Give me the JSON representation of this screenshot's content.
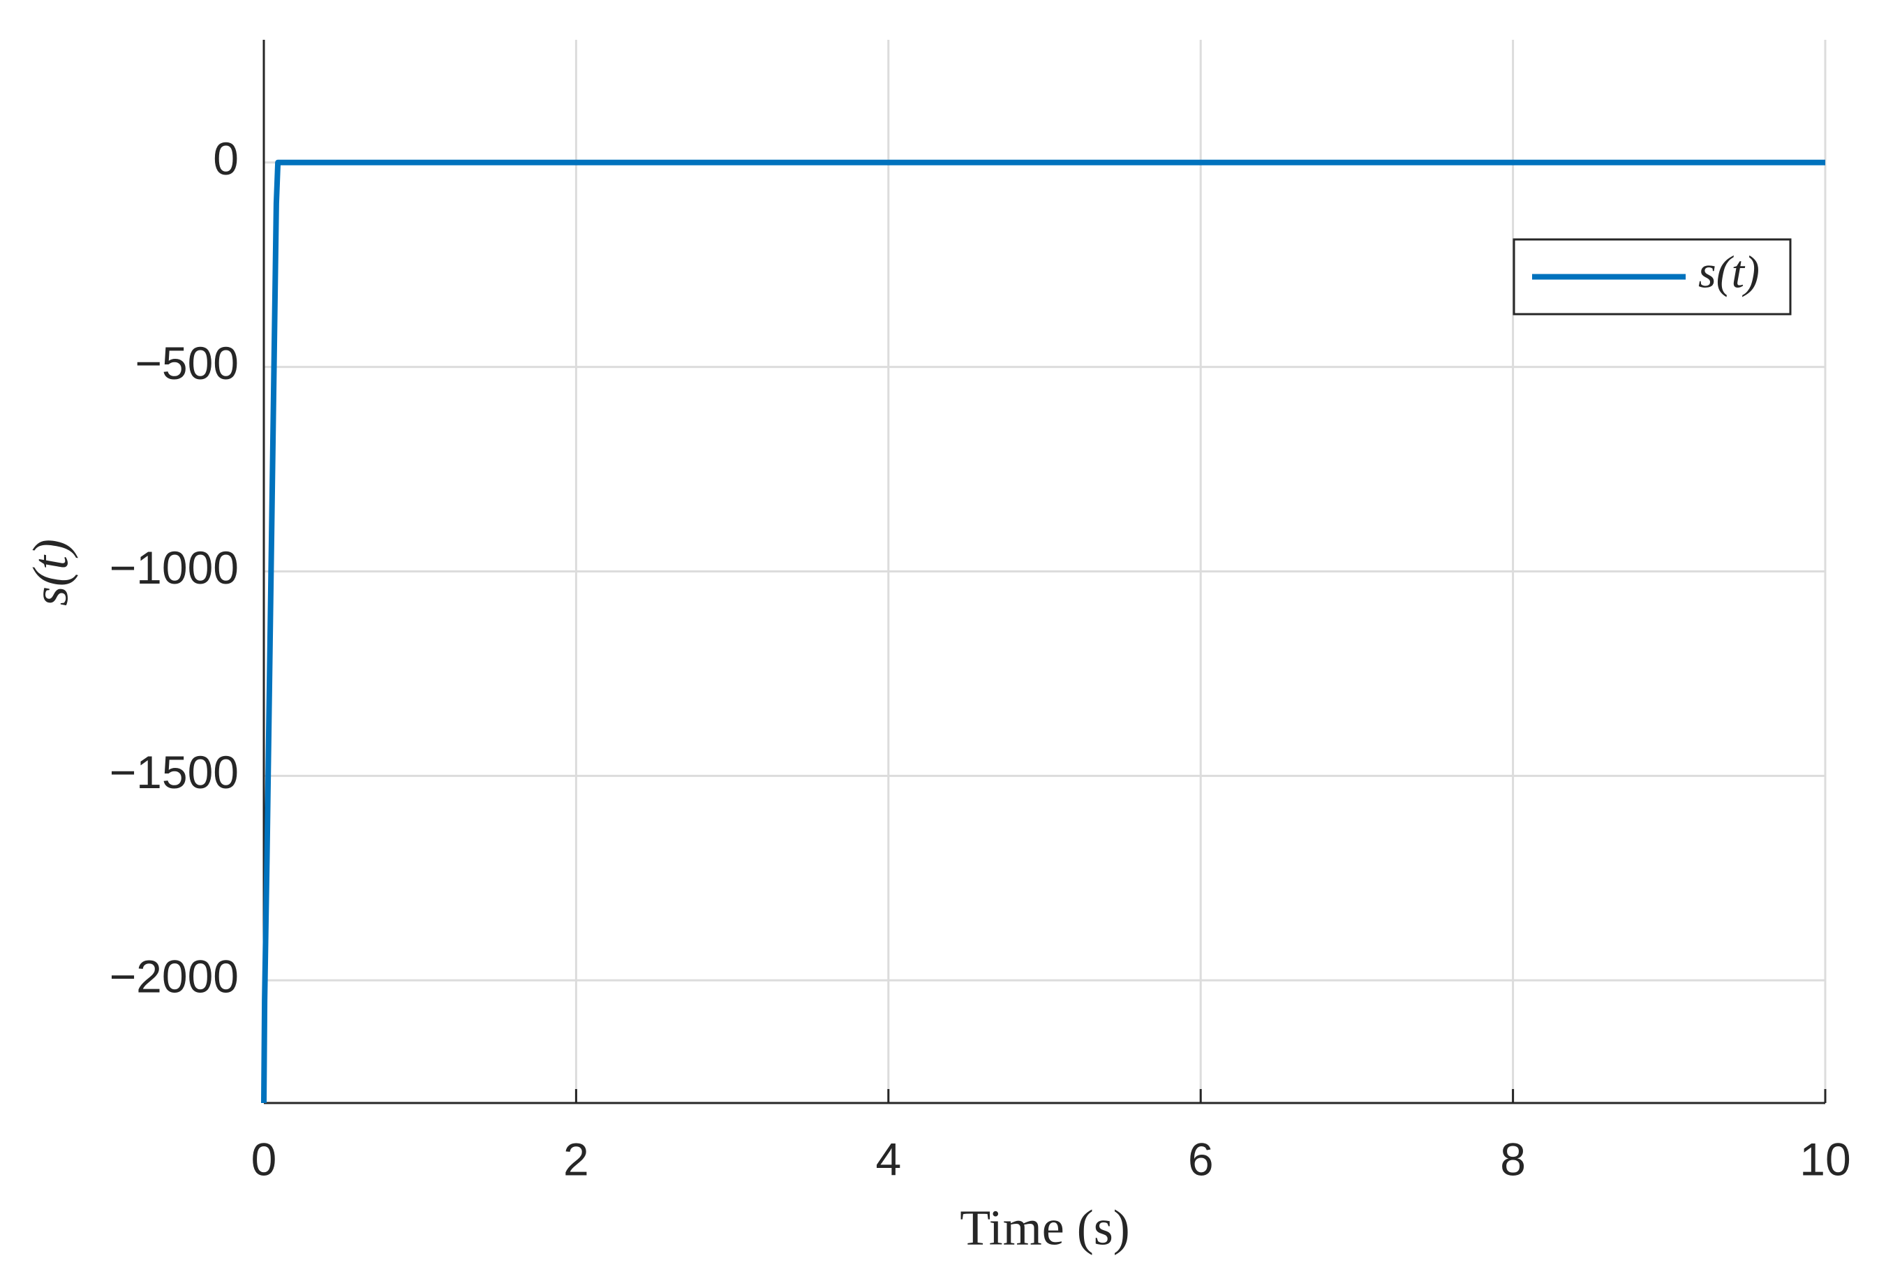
{
  "chart_data": {
    "type": "line",
    "xlabel": "Time (s)",
    "ylabel": "s(t)",
    "x": [
      0,
      0.005,
      0.02,
      0.05,
      0.08,
      0.09,
      0.2,
      10
    ],
    "series": [
      {
        "name": "s(t)",
        "color": "#0072BD",
        "values": [
          -2300,
          -2050,
          -1700,
          -900,
          -100,
          0,
          0,
          0
        ]
      }
    ],
    "xlim": [
      0,
      10
    ],
    "xticks": [
      0,
      2,
      4,
      6,
      8,
      10
    ],
    "ylim": [
      -2300,
      300
    ],
    "yticks": [
      {
        "value": -2000,
        "label": "−2000"
      },
      {
        "value": -1500,
        "label": "−1500"
      },
      {
        "value": -1000,
        "label": "−1000"
      },
      {
        "value": -500,
        "label": "−500"
      },
      0
    ],
    "grid": true,
    "legend": "northeast"
  }
}
